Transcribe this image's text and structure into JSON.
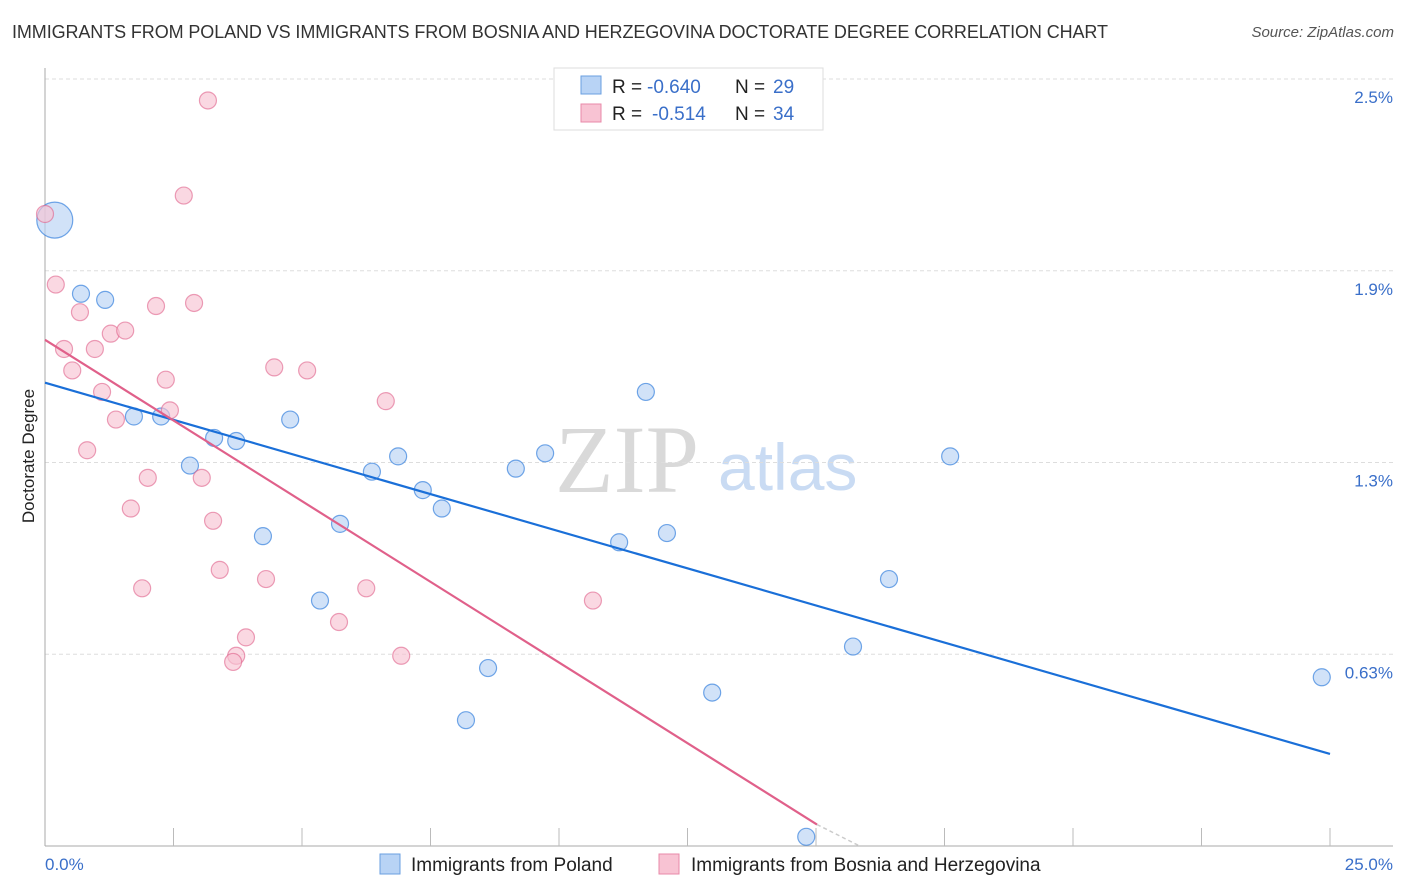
{
  "header": {
    "title": "IMMIGRANTS FROM POLAND VS IMMIGRANTS FROM BOSNIA AND HERZEGOVINA DOCTORATE DEGREE CORRELATION CHART",
    "source": "Source: ZipAtlas.com"
  },
  "watermark": {
    "zip": "ZIP",
    "atlas": "atlas"
  },
  "chart_data": {
    "type": "scatter",
    "title": "IMMIGRANTS FROM POLAND VS IMMIGRANTS FROM BOSNIA AND HERZEGOVINA DOCTORATE DEGREE CORRELATION CHART",
    "xlabel": "",
    "ylabel": "Doctorate Degree",
    "xlim": [
      0,
      25
    ],
    "ylim": [
      0,
      2.5
    ],
    "x_tick_labels": [
      "0.0%",
      "25.0%"
    ],
    "y_ticks": [
      {
        "v": 2.5,
        "label": "2.5%"
      },
      {
        "v": 1.875,
        "label": "1.9%"
      },
      {
        "v": 1.25,
        "label": "1.3%"
      },
      {
        "v": 0.625,
        "label": "0.63%"
      }
    ],
    "grid": true,
    "legend_stats": [
      {
        "r_label": "R =",
        "r": "-0.640",
        "n_label": "N =",
        "n": "29"
      },
      {
        "r_label": "R =",
        "r": "-0.514",
        "n_label": "N =",
        "n": "34"
      }
    ],
    "series": [
      {
        "name": "Immigrants from Poland",
        "color": "#1a6fd8",
        "fill": "#b8d3f5",
        "trend": [
          [
            0,
            1.51
          ],
          [
            25,
            0.3
          ]
        ],
        "points": [
          [
            0.19,
            2.04,
            "big"
          ],
          [
            0.7,
            1.8
          ],
          [
            1.17,
            1.78
          ],
          [
            1.73,
            1.4
          ],
          [
            2.26,
            1.4
          ],
          [
            2.82,
            1.24
          ],
          [
            3.29,
            1.33
          ],
          [
            3.72,
            1.32
          ],
          [
            4.24,
            1.01
          ],
          [
            4.77,
            1.39
          ],
          [
            5.35,
            0.8
          ],
          [
            5.74,
            1.05
          ],
          [
            6.36,
            1.22
          ],
          [
            6.87,
            1.27
          ],
          [
            7.35,
            1.16
          ],
          [
            7.72,
            1.1
          ],
          [
            8.19,
            0.41
          ],
          [
            8.62,
            0.58
          ],
          [
            9.16,
            1.23
          ],
          [
            9.73,
            1.28
          ],
          [
            11.17,
            0.99
          ],
          [
            11.69,
            1.48
          ],
          [
            12.1,
            1.02
          ],
          [
            12.98,
            0.5
          ],
          [
            14.81,
            0.03
          ],
          [
            15.72,
            0.65
          ],
          [
            16.42,
            0.87
          ],
          [
            17.61,
            1.27
          ],
          [
            24.84,
            0.55
          ]
        ]
      },
      {
        "name": "Immigrants from Bosnia and Herzegovina",
        "color": "#e0608a",
        "fill": "#f8c3d3",
        "trend": [
          [
            0,
            1.65
          ],
          [
            15.02,
            0.07
          ]
        ],
        "trend_ext": [
          15.85,
          0.0
        ],
        "points": [
          [
            0.0,
            2.06
          ],
          [
            0.21,
            1.83
          ],
          [
            0.68,
            1.74
          ],
          [
            0.37,
            1.62
          ],
          [
            0.97,
            1.62
          ],
          [
            0.53,
            1.55
          ],
          [
            1.28,
            1.67
          ],
          [
            1.56,
            1.68
          ],
          [
            2.16,
            1.76
          ],
          [
            2.9,
            1.77
          ],
          [
            2.7,
            2.12
          ],
          [
            3.17,
            2.43
          ],
          [
            1.11,
            1.48
          ],
          [
            1.38,
            1.39
          ],
          [
            2.35,
            1.52
          ],
          [
            2.43,
            1.42
          ],
          [
            0.82,
            1.29
          ],
          [
            2.0,
            1.2
          ],
          [
            1.67,
            1.1
          ],
          [
            3.05,
            1.2
          ],
          [
            3.27,
            1.06
          ],
          [
            3.4,
            0.9
          ],
          [
            4.3,
            0.87
          ],
          [
            1.89,
            0.84
          ],
          [
            3.91,
            0.68
          ],
          [
            3.72,
            0.62
          ],
          [
            3.66,
            0.6
          ],
          [
            4.46,
            1.56
          ],
          [
            5.1,
            1.55
          ],
          [
            6.63,
            1.45
          ],
          [
            6.25,
            0.84
          ],
          [
            5.72,
            0.73
          ],
          [
            6.93,
            0.62
          ],
          [
            10.66,
            0.8
          ]
        ]
      }
    ]
  }
}
